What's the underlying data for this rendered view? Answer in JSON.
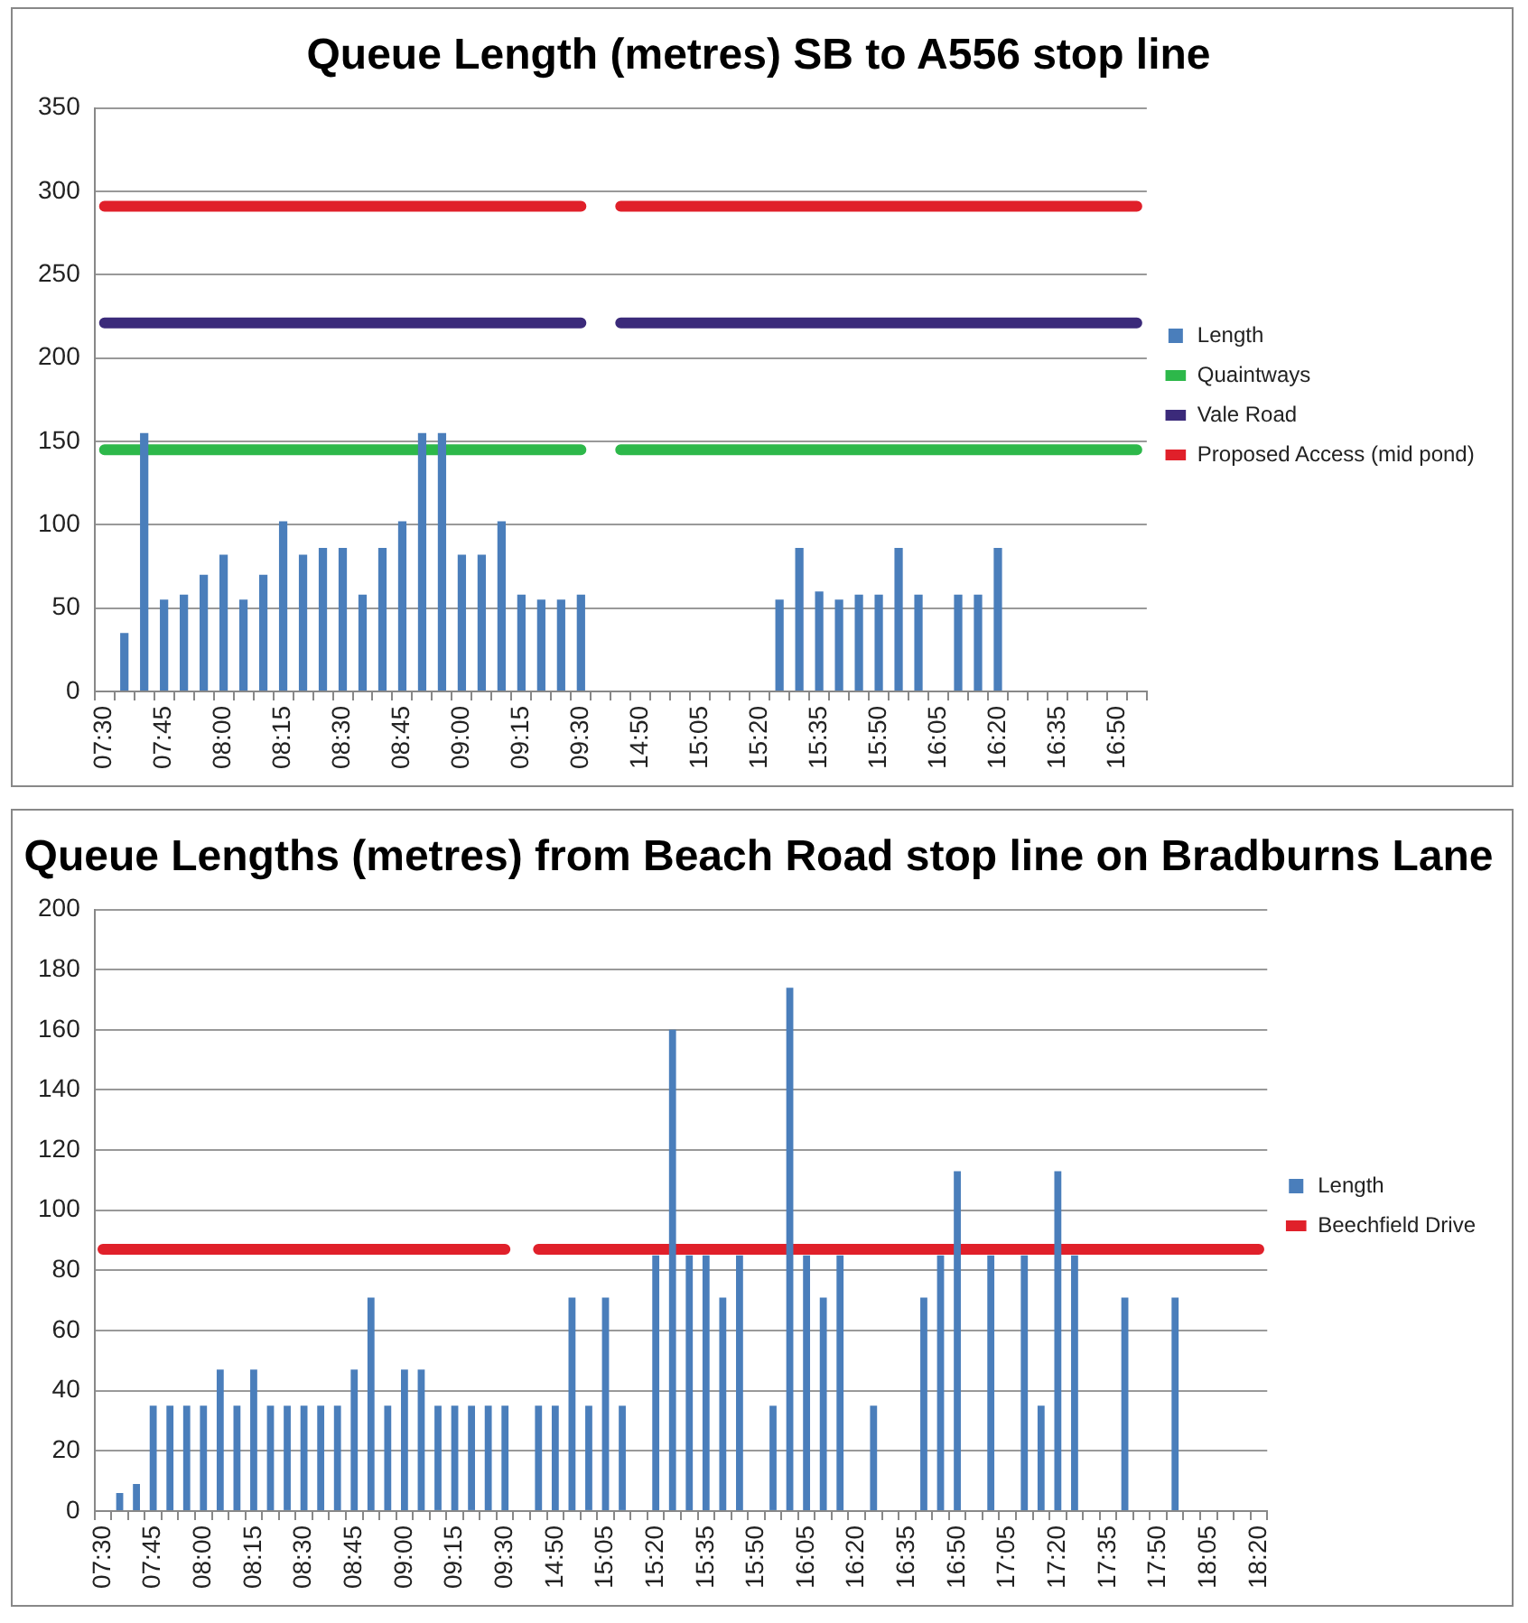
{
  "chart_data": [
    {
      "type": "bar",
      "title": "Queue Length (metres) SB to A556 stop line",
      "categories": [
        "07:30",
        null,
        null,
        "07:45",
        null,
        null,
        "08:00",
        null,
        null,
        "08:15",
        null,
        null,
        "08:30",
        null,
        null,
        "08:45",
        null,
        null,
        "09:00",
        null,
        null,
        "09:15",
        null,
        null,
        "09:30",
        null,
        null,
        "14:50",
        null,
        null,
        "15:05",
        null,
        null,
        "15:20",
        null,
        null,
        "15:35",
        null,
        null,
        "15:50",
        null,
        null,
        "16:05",
        null,
        null,
        "16:20",
        null,
        null,
        "16:35",
        null,
        null,
        "16:50",
        null
      ],
      "series": [
        {
          "name": "Length",
          "color": "#4a7ebb",
          "values": [
            null,
            35,
            155,
            55,
            58,
            70,
            82,
            55,
            70,
            102,
            82,
            86,
            86,
            58,
            86,
            102,
            155,
            155,
            82,
            82,
            102,
            58,
            55,
            55,
            58,
            null,
            null,
            null,
            null,
            null,
            null,
            null,
            null,
            null,
            55,
            86,
            60,
            55,
            58,
            58,
            86,
            58,
            null,
            58,
            58,
            86,
            null,
            null,
            null,
            null,
            null,
            null,
            null
          ]
        },
        {
          "name": "Quaintways",
          "type": "line",
          "color": "#2db84a",
          "values": [
            145,
            145,
            145,
            145,
            145,
            145,
            145,
            145,
            145,
            145,
            145,
            145,
            145,
            145,
            145,
            145,
            145,
            145,
            145,
            145,
            145,
            145,
            145,
            145,
            145,
            null,
            145,
            145,
            145,
            145,
            145,
            145,
            145,
            145,
            145,
            145,
            145,
            145,
            145,
            145,
            145,
            145,
            145,
            145,
            145,
            145,
            145,
            145,
            145,
            145,
            145,
            145,
            145
          ]
        },
        {
          "name": "Vale Road",
          "type": "line",
          "color": "#3b2a7a",
          "values": [
            221,
            221,
            221,
            221,
            221,
            221,
            221,
            221,
            221,
            221,
            221,
            221,
            221,
            221,
            221,
            221,
            221,
            221,
            221,
            221,
            221,
            221,
            221,
            221,
            221,
            null,
            221,
            221,
            221,
            221,
            221,
            221,
            221,
            221,
            221,
            221,
            221,
            221,
            221,
            221,
            221,
            221,
            221,
            221,
            221,
            221,
            221,
            221,
            221,
            221,
            221,
            221,
            221
          ]
        },
        {
          "name": "Proposed Access (mid pond)",
          "type": "line",
          "color": "#e0202a",
          "values": [
            291,
            291,
            291,
            291,
            291,
            291,
            291,
            291,
            291,
            291,
            291,
            291,
            291,
            291,
            291,
            291,
            291,
            291,
            291,
            291,
            291,
            291,
            291,
            291,
            291,
            null,
            291,
            291,
            291,
            291,
            291,
            291,
            291,
            291,
            291,
            291,
            291,
            291,
            291,
            291,
            291,
            291,
            291,
            291,
            291,
            291,
            291,
            291,
            291,
            291,
            291,
            291,
            291
          ]
        }
      ],
      "ylim": [
        0,
        350
      ],
      "yticks": [
        0,
        50,
        100,
        150,
        200,
        250,
        300,
        350
      ],
      "grid": "y",
      "legend": "right",
      "marker": "none",
      "line_style": "solid"
    },
    {
      "type": "bar",
      "title": "Queue Lengths (metres) from Beach Road stop line on Bradburns Lane",
      "categories": [
        "07:30",
        null,
        null,
        "07:45",
        null,
        null,
        "08:00",
        null,
        null,
        "08:15",
        null,
        null,
        "08:30",
        null,
        null,
        "08:45",
        null,
        null,
        "09:00",
        null,
        null,
        "09:15",
        null,
        null,
        "09:30",
        null,
        null,
        "14:50",
        null,
        null,
        "15:05",
        null,
        null,
        "15:20",
        null,
        null,
        "15:35",
        null,
        null,
        "15:50",
        null,
        null,
        "16:05",
        null,
        null,
        "16:20",
        null,
        null,
        "16:35",
        null,
        null,
        "16:50",
        null,
        null,
        "17:05",
        null,
        null,
        "17:20",
        null,
        null,
        "17:35",
        null,
        null,
        "17:50",
        null,
        null,
        "18:05",
        null,
        null,
        "18:20"
      ],
      "series": [
        {
          "name": "Length",
          "color": "#4a7ebb",
          "values": [
            null,
            6,
            9,
            35,
            35,
            35,
            35,
            47,
            35,
            47,
            35,
            35,
            35,
            35,
            35,
            47,
            71,
            35,
            47,
            47,
            35,
            35,
            35,
            35,
            35,
            null,
            35,
            35,
            71,
            35,
            71,
            35,
            null,
            85,
            160,
            85,
            85,
            71,
            85,
            null,
            35,
            174,
            85,
            71,
            85,
            null,
            35,
            null,
            null,
            71,
            85,
            113,
            null,
            85,
            null,
            85,
            35,
            113,
            85,
            null,
            null,
            71,
            null,
            null,
            71,
            null,
            null,
            null,
            null,
            null
          ]
        },
        {
          "name": "Beechfield Drive",
          "type": "line",
          "color": "#e0202a",
          "values": [
            87,
            87,
            87,
            87,
            87,
            87,
            87,
            87,
            87,
            87,
            87,
            87,
            87,
            87,
            87,
            87,
            87,
            87,
            87,
            87,
            87,
            87,
            87,
            87,
            87,
            null,
            87,
            87,
            87,
            87,
            87,
            87,
            87,
            87,
            87,
            87,
            87,
            87,
            87,
            87,
            87,
            87,
            87,
            87,
            87,
            87,
            87,
            87,
            87,
            87,
            87,
            87,
            87,
            87,
            87,
            87,
            87,
            87,
            87,
            87,
            87,
            87,
            87,
            87,
            87,
            87,
            87,
            87,
            87,
            87
          ]
        }
      ],
      "ylim": [
        0,
        200
      ],
      "yticks": [
        0,
        20,
        40,
        60,
        80,
        100,
        120,
        140,
        160,
        180,
        200
      ],
      "grid": "y",
      "legend": "right",
      "marker": "none",
      "line_style": "solid"
    }
  ]
}
